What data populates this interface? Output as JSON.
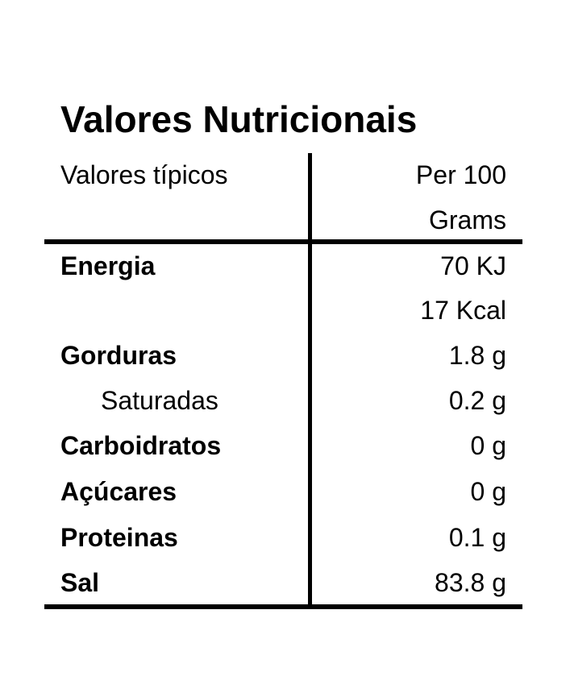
{
  "title": "Valores Nutricionais",
  "header": {
    "left": "Valores típicos",
    "right": "Per 100 Grams"
  },
  "rows": [
    {
      "label": "Energia",
      "values": [
        "70 KJ",
        "17 Kcal"
      ]
    },
    {
      "label": "Gorduras",
      "values": [
        "1.8 g"
      ]
    },
    {
      "label": "Saturadas",
      "values": [
        "0.2 g"
      ]
    },
    {
      "label": "Carboidratos",
      "values": [
        "0 g"
      ]
    },
    {
      "label": "Açúcares",
      "values": [
        "0 g"
      ]
    },
    {
      "label": "Proteinas",
      "values": [
        "0.1 g"
      ]
    },
    {
      "label": "Sal",
      "values": [
        "83.8 g"
      ]
    }
  ]
}
